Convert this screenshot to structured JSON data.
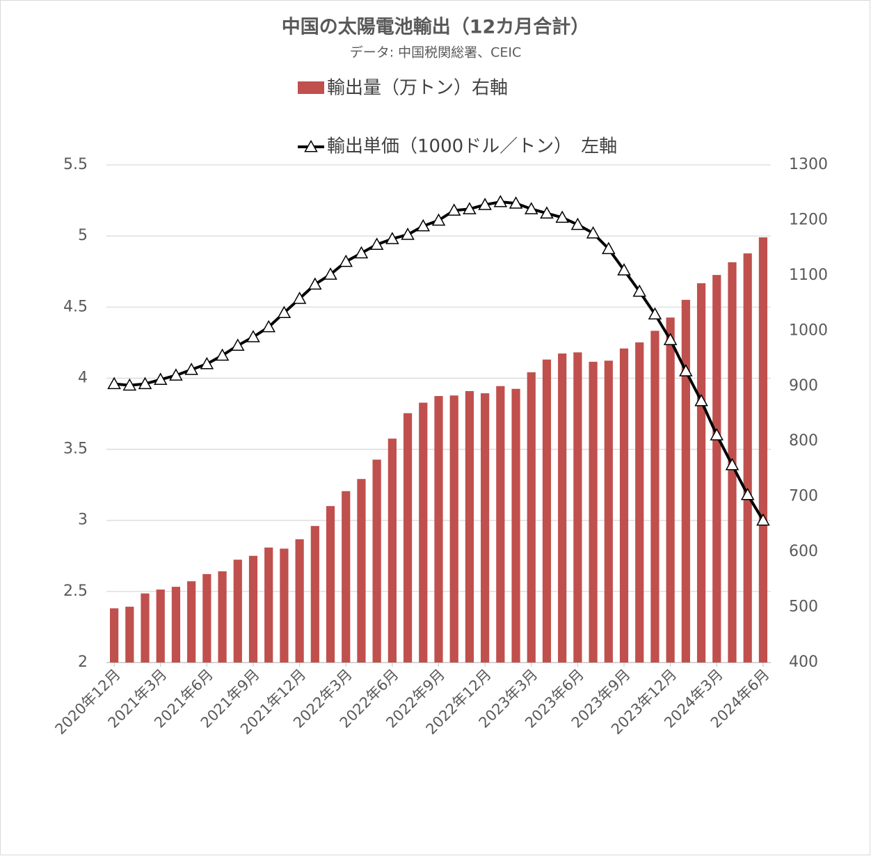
{
  "chart_data": {
    "type": "bar_line",
    "title": "中国の太陽電池輸出（12カ月合計）",
    "subtitle": "データ: 中国税関総署、CEIC",
    "categories": [
      "2020年12月",
      null,
      null,
      "2021年3月",
      null,
      null,
      "2021年6月",
      null,
      null,
      "2021年9月",
      null,
      null,
      "2021年12月",
      null,
      null,
      "2022年3月",
      null,
      null,
      "2022年6月",
      null,
      null,
      "2022年9月",
      null,
      null,
      "2022年12月",
      null,
      null,
      "2023年3月",
      null,
      null,
      "2023年6月",
      null,
      null,
      "2023年9月",
      null,
      null,
      "2023年12月",
      null,
      null,
      "2024年3月",
      null,
      null,
      "2024年6月"
    ],
    "series": [
      {
        "name": "輸出量（万トン）右軸",
        "color": "#c0504d",
        "type": "bar",
        "axis": "y2",
        "values": [
          498,
          501,
          525,
          532,
          537,
          547,
          560,
          565,
          586,
          593,
          608,
          606,
          623,
          647,
          683,
          710,
          732,
          767,
          805,
          851,
          870,
          882,
          883,
          891,
          887,
          900,
          895,
          925,
          948,
          959,
          961,
          944,
          946,
          968,
          979,
          1000,
          1024,
          1056,
          1086,
          1101,
          1124,
          1140,
          1169
        ]
      },
      {
        "name": "輸出単価（1000ドル／トン）　左軸",
        "color": "#000000",
        "type": "line",
        "marker": "triangle",
        "values": [
          3.96,
          3.95,
          3.96,
          3.99,
          4.02,
          4.06,
          4.1,
          4.16,
          4.23,
          4.29,
          4.36,
          4.46,
          4.56,
          4.66,
          4.73,
          4.82,
          4.88,
          4.94,
          4.98,
          5.01,
          5.07,
          5.11,
          5.18,
          5.19,
          5.22,
          5.24,
          5.23,
          5.19,
          5.16,
          5.13,
          5.08,
          5.02,
          4.91,
          4.76,
          4.61,
          4.45,
          4.27,
          4.05,
          3.84,
          3.6,
          3.39,
          3.18,
          3.0
        ]
      }
    ],
    "ylim": [
      2,
      5.5
    ],
    "yticks": [
      2,
      2.5,
      3,
      3.5,
      4,
      4.5,
      5,
      5.5
    ],
    "y2lim": [
      400,
      1300
    ],
    "y2ticks": [
      400,
      500,
      600,
      700,
      800,
      900,
      1000,
      1100,
      1200,
      1300
    ],
    "grid": true
  }
}
